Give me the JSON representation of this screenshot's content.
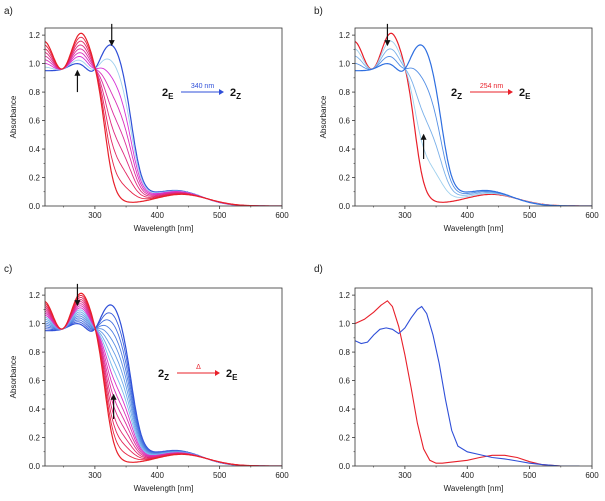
{
  "chart_data": [
    {
      "panel": "a)",
      "type": "line",
      "xlabel": "Wavelength [nm]",
      "ylabel": "Absorbance",
      "xlim": [
        220,
        600
      ],
      "ylim": [
        0,
        1.25
      ],
      "xticks": [
        300,
        400,
        500,
        600
      ],
      "yticks": [
        0.0,
        0.2,
        0.4,
        0.6,
        0.8,
        1.0,
        1.2
      ],
      "grid": false,
      "start_color": "#2f4fd8",
      "end_color": "#e8202a",
      "mid_color": "#d633d6",
      "light_color": "#9fd0ee",
      "start_peak_nm": 327,
      "series_count": 9,
      "arrows": [
        {
          "direction": "down",
          "at_nm": 327
        },
        {
          "direction": "up",
          "at_nm": 272
        }
      ],
      "scheme": {
        "from": "2",
        "from_sub": "E",
        "label": "340 nm",
        "to": "2",
        "to_sub": "Z",
        "color": "#2f4fd8"
      }
    },
    {
      "panel": "b)",
      "type": "line",
      "xlabel": "Wavelength [nm]",
      "ylabel": "Absorbance",
      "xlim": [
        220,
        600
      ],
      "ylim": [
        0,
        1.25
      ],
      "xticks": [
        300,
        400,
        500,
        600
      ],
      "yticks": [
        0.0,
        0.2,
        0.4,
        0.6,
        0.8,
        1.0,
        1.2
      ],
      "grid": false,
      "start_color": "#e8202a",
      "end_color": "#2f6fe0",
      "mid_color": "#7fc3ee",
      "light_color": "#9fd0ee",
      "start_peak_nm": 327,
      "series_count": 5,
      "arrows": [
        {
          "direction": "down",
          "at_nm": 272
        },
        {
          "direction": "up",
          "at_nm": 330
        }
      ],
      "scheme": {
        "from": "2",
        "from_sub": "Z",
        "label": "254 nm",
        "to": "2",
        "to_sub": "E",
        "color": "#e8202a"
      }
    },
    {
      "panel": "c)",
      "type": "line",
      "xlabel": "Wavelength [nm]",
      "ylabel": "Absorbance",
      "xlim": [
        220,
        600
      ],
      "ylim": [
        0,
        1.25
      ],
      "xticks": [
        300,
        400,
        500,
        600
      ],
      "yticks": [
        0.0,
        0.2,
        0.4,
        0.6,
        0.8,
        1.0,
        1.2
      ],
      "grid": false,
      "start_color": "#2f4fd8",
      "end_color": "#e8202a",
      "mid_color": "#d633d6",
      "light_color": "#7fc3ee",
      "start_peak_nm": 327,
      "series_count": 16,
      "arrows": [
        {
          "direction": "down",
          "at_nm": 272
        },
        {
          "direction": "up",
          "at_nm": 330
        }
      ],
      "scheme": {
        "from": "2",
        "from_sub": "Z",
        "label": "Δ",
        "to": "2",
        "to_sub": "E",
        "color": "#e8202a"
      }
    },
    {
      "panel": "d)",
      "type": "line",
      "xlabel": "Wavelength [nm]",
      "ylabel": "",
      "xlim": [
        220,
        600
      ],
      "ylim": [
        0,
        1.25
      ],
      "xticks": [
        300,
        400,
        500,
        600
      ],
      "yticks": [
        0.0,
        0.2,
        0.4,
        0.6,
        0.8,
        1.0,
        1.2
      ],
      "grid": false,
      "series": [
        {
          "color": "#e8202a",
          "x": [
            220,
            235,
            250,
            262,
            272,
            280,
            290,
            300,
            310,
            320,
            330,
            340,
            350,
            360,
            370,
            400,
            420,
            440,
            460,
            480,
            500,
            520,
            550
          ],
          "y": [
            1.0,
            1.03,
            1.08,
            1.13,
            1.16,
            1.12,
            0.98,
            0.78,
            0.55,
            0.3,
            0.12,
            0.04,
            0.02,
            0.02,
            0.025,
            0.04,
            0.06,
            0.075,
            0.075,
            0.06,
            0.03,
            0.01,
            0.0
          ]
        },
        {
          "color": "#2f4fd8",
          "x": [
            220,
            230,
            240,
            250,
            260,
            270,
            280,
            290,
            300,
            310,
            320,
            327,
            335,
            345,
            355,
            365,
            375,
            385,
            400,
            420,
            440,
            460,
            480,
            500,
            520,
            550,
            580
          ],
          "y": [
            0.88,
            0.86,
            0.87,
            0.92,
            0.96,
            0.97,
            0.96,
            0.93,
            0.97,
            1.04,
            1.1,
            1.12,
            1.07,
            0.92,
            0.72,
            0.47,
            0.25,
            0.14,
            0.1,
            0.08,
            0.06,
            0.05,
            0.035,
            0.02,
            0.01,
            0.0,
            0.0
          ]
        }
      ]
    }
  ]
}
